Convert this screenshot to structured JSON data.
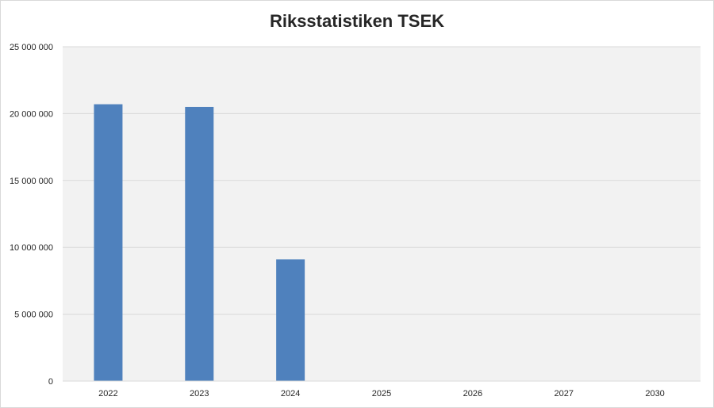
{
  "chart_data": {
    "type": "bar",
    "title": "Riksstatistiken TSEK",
    "xlabel": "",
    "ylabel": "",
    "categories": [
      "2022",
      "2023",
      "2024",
      "2025",
      "2026",
      "2027",
      "2030"
    ],
    "values": [
      20700000,
      20500000,
      9100000,
      0,
      0,
      0,
      0
    ],
    "ylim": [
      0,
      25000000
    ],
    "yticks": [
      0,
      5000000,
      10000000,
      15000000,
      20000000,
      25000000
    ],
    "ytick_labels": [
      "0",
      "5 000 000",
      "10 000 000",
      "15 000 000",
      "20 000 000",
      "25 000 000"
    ],
    "grid": true,
    "legend": "none",
    "colors": {
      "bar": "#4f81bd",
      "plot_background": "#f2f2f2",
      "gridline": "#d9d9d9"
    }
  }
}
